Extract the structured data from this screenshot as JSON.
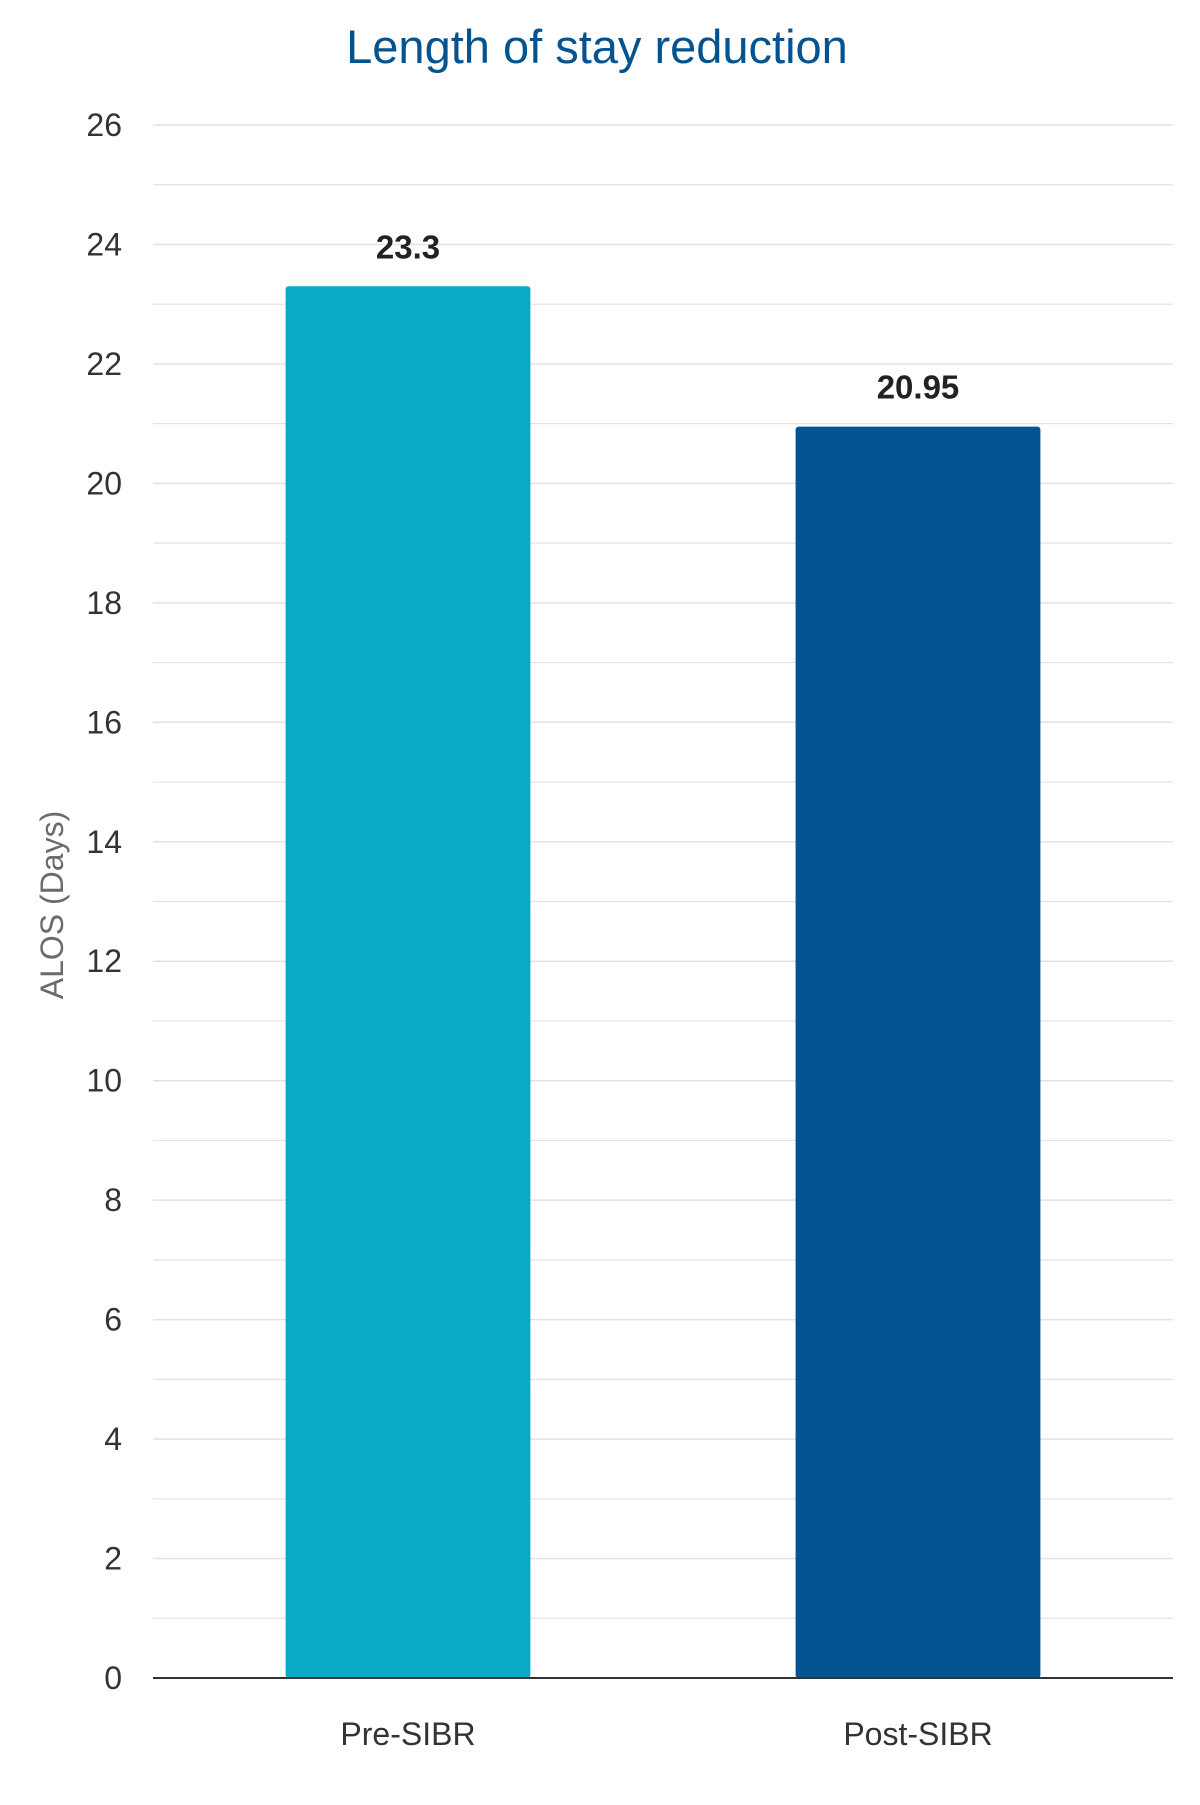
{
  "chart_data": {
    "type": "bar",
    "title": "Length of stay reduction",
    "xlabel": "",
    "ylabel": "ALOS (Days)",
    "categories": [
      "Pre-SIBR",
      "Post-SIBR"
    ],
    "values": [
      23.3,
      20.95
    ],
    "data_labels": [
      "23.3",
      "20.95"
    ],
    "ylim": [
      0,
      26
    ],
    "yticks": [
      0,
      2,
      4,
      6,
      8,
      10,
      12,
      14,
      16,
      18,
      20,
      22,
      24,
      26
    ],
    "minor_grid": true,
    "grid": true,
    "legend": "none",
    "colors": {
      "bars": [
        "#0aa9c5",
        "#035391"
      ],
      "title": "#035391",
      "axis_label": "#6b6b6b",
      "tick_label": "#333333",
      "data_label": "#222222",
      "grid": "#e2e2e2",
      "axis_line": "#333333"
    }
  }
}
